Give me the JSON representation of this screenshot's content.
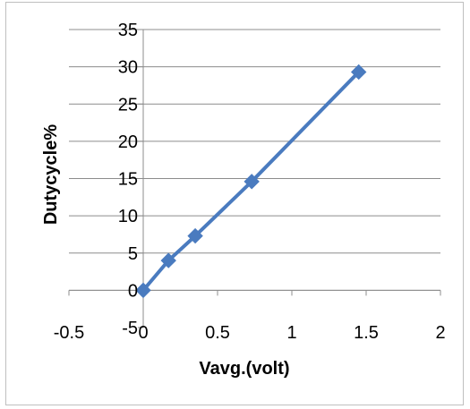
{
  "chart_data": {
    "type": "scatter",
    "title": "",
    "xlabel": "Vavg.(volt)",
    "ylabel": "Dutycycle%",
    "xlim": [
      -0.5,
      2
    ],
    "ylim": [
      -5,
      35
    ],
    "x_ticks": [
      -0.5,
      0,
      0.5,
      1,
      1.5,
      2
    ],
    "x_tick_labels": [
      "-0.5",
      "0",
      "0.5",
      "1",
      "1.5",
      "2"
    ],
    "y_ticks": [
      -5,
      0,
      5,
      10,
      15,
      20,
      25,
      30,
      35
    ],
    "y_tick_labels": [
      "-5",
      "0",
      "5",
      "10",
      "15",
      "20",
      "25",
      "30",
      "35"
    ],
    "grid": "horizontal",
    "legend": "none",
    "markers": "diamond",
    "connected": true,
    "series": [
      {
        "color": "#4a7bbf",
        "x": [
          0,
          0.17,
          0.35,
          0.73,
          1.45
        ],
        "y": [
          0,
          4,
          7.3,
          14.6,
          29.3
        ]
      }
    ]
  }
}
